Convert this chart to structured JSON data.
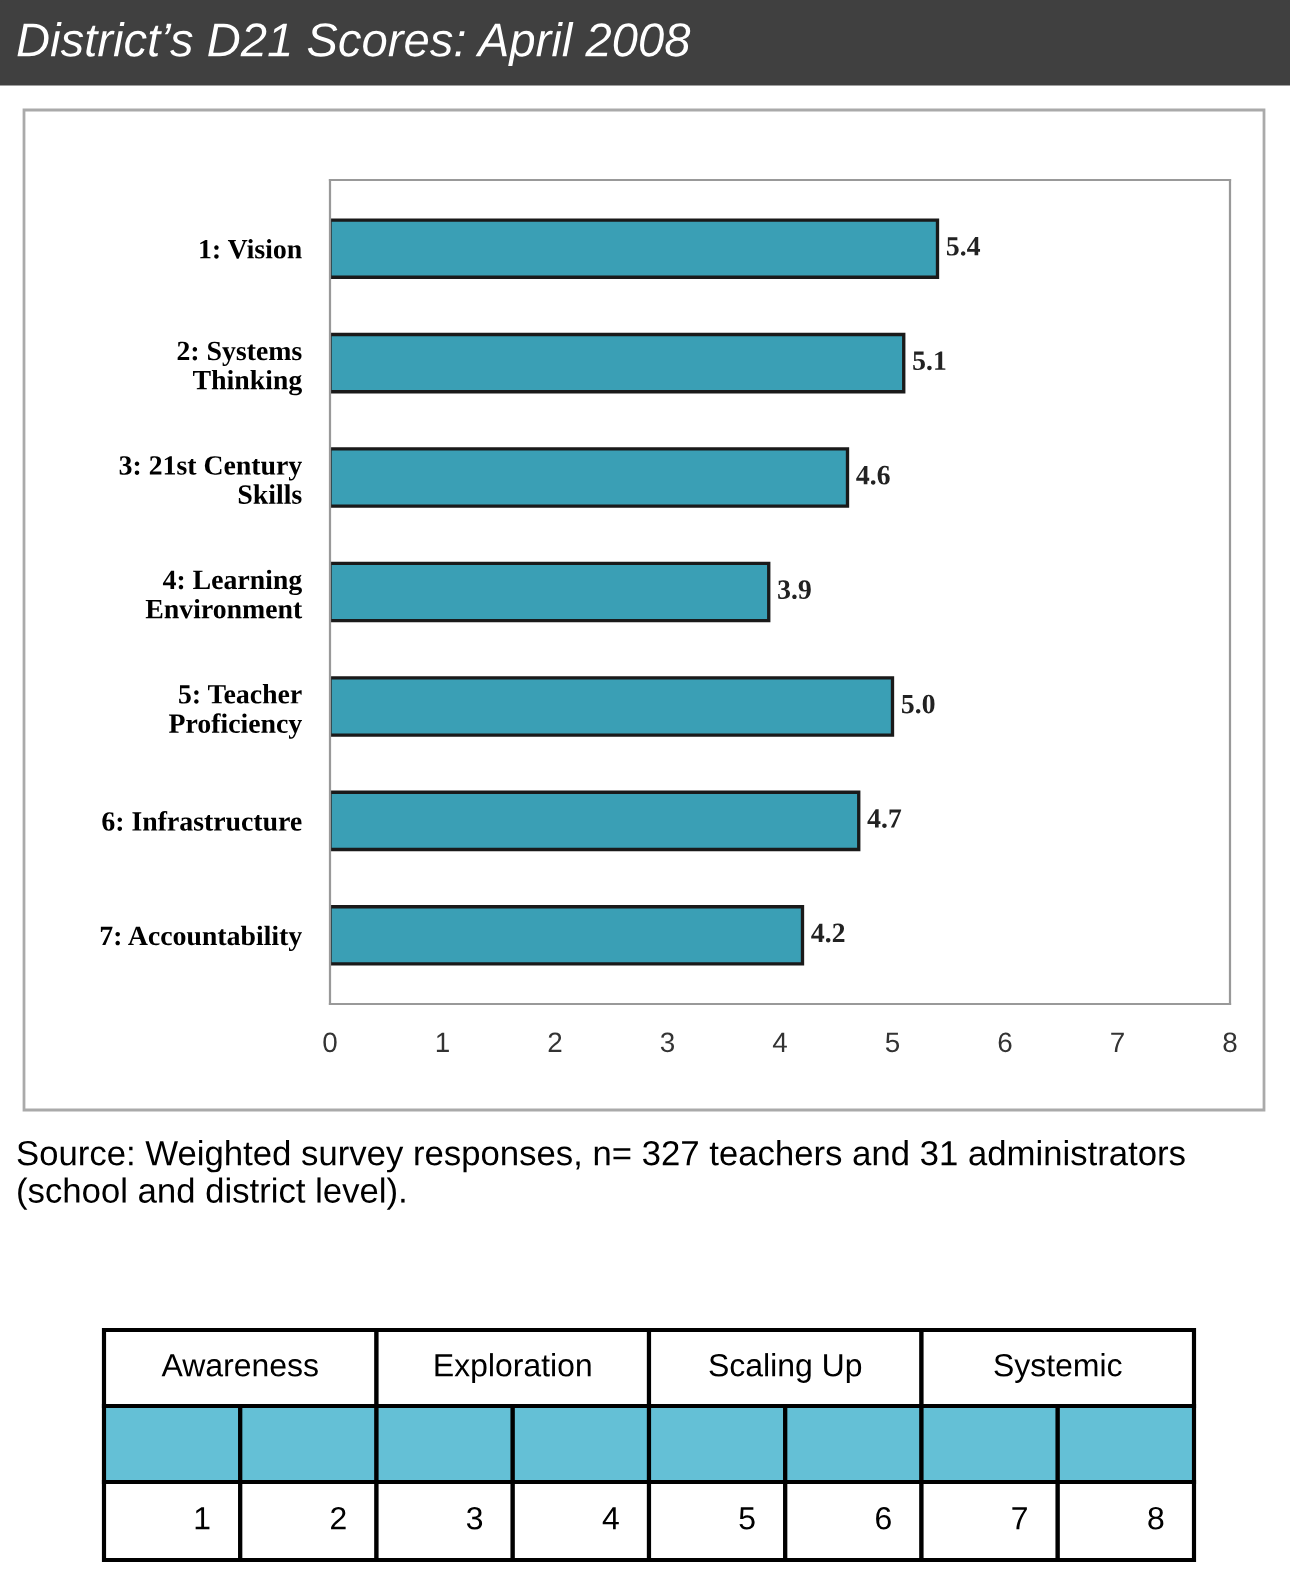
{
  "chart_data": {
    "type": "bar",
    "orientation": "horizontal",
    "title": "District’s D21 Scores: April 2008",
    "categories": [
      "1: Vision",
      "2: Systems\nThinking",
      "3: 21st Century\nSkills",
      "4: Learning\nEnvironment",
      "5: Teacher\nProficiency",
      "6: Infrastructure",
      "7: Accountability"
    ],
    "values": [
      5.4,
      5.1,
      4.6,
      3.9,
      5.0,
      4.7,
      4.2
    ],
    "color": "#3a9fb5",
    "value_labels": [
      "5.4",
      "5.1",
      "4.6",
      "3.9",
      "5.0",
      "4.7",
      "4.2"
    ],
    "xlim": [
      0,
      8
    ],
    "xticks": [
      0,
      1,
      2,
      3,
      4,
      5,
      6,
      7,
      8
    ],
    "grid": false,
    "legend": false,
    "annotations": [
      "Source: Weighted survey responses, n= 327 teachers and 31 administrators (school and district level).",
      "Awareness",
      "Exploration",
      "Scaling Up",
      "Systemic",
      "1",
      "2",
      "3",
      "4",
      "5",
      "6",
      "7",
      "8"
    ]
  }
}
